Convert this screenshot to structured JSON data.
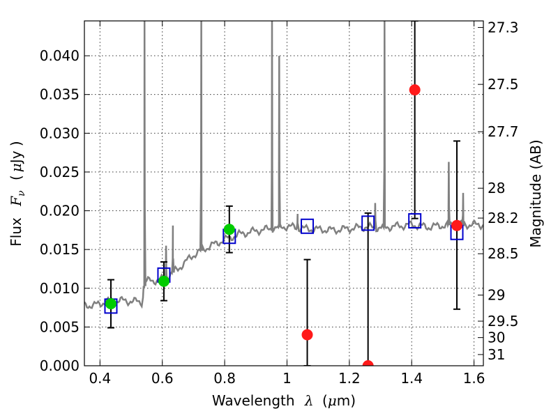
{
  "chart_data": {
    "type": "line",
    "xlabel_prefix": "Wavelength",
    "xlabel_symbol": "λ",
    "xlabel_unit_open": "(",
    "xlabel_unit_mu": "μ",
    "xlabel_unit_rest": "m)",
    "ylabel_prefix": "Flux",
    "ylabel_symbol": "F",
    "ylabel_symbol_sub": "ν",
    "ylabel_unit_open": "(",
    "ylabel_unit_mu": "μ",
    "ylabel_unit_rest": "Jy )",
    "ylabel_right": "Magnitude (AB)",
    "xlim": [
      0.35,
      1.63
    ],
    "ylim": [
      0.0,
      0.0445
    ],
    "x_ticks": [
      0.4,
      0.6,
      0.8,
      1.0,
      1.2,
      1.4,
      1.6
    ],
    "x_tick_labels": [
      "0.4",
      "0.6",
      "0.8",
      "1",
      "1.2",
      "1.4",
      "1.6"
    ],
    "y_ticks": [
      0.0,
      0.005,
      0.01,
      0.015,
      0.02,
      0.025,
      0.03,
      0.035,
      0.04
    ],
    "y_tick_labels": [
      "0.000",
      "0.005",
      "0.010",
      "0.015",
      "0.020",
      "0.025",
      "0.030",
      "0.035",
      "0.040"
    ],
    "right_ticks": [
      27.3,
      27.5,
      27.7,
      28,
      28.2,
      28.5,
      29,
      29.5,
      30,
      31
    ],
    "right_tick_labels": [
      "27.3",
      "27.5",
      "27.7",
      "28",
      "28.2",
      "28.5",
      "29",
      "29.5",
      "30",
      "31"
    ],
    "grid": true,
    "colors": {
      "spectrum": "#808080",
      "model_box": "#0000cc",
      "green_point": "#00cc00",
      "red_point": "#ff1a1a",
      "errorbar": "#000000"
    },
    "spectrum_continuum": [
      [
        0.35,
        0.0078
      ],
      [
        0.38,
        0.0078
      ],
      [
        0.4,
        0.008
      ],
      [
        0.42,
        0.0083
      ],
      [
        0.45,
        0.0084
      ],
      [
        0.48,
        0.0084
      ],
      [
        0.5,
        0.0083
      ],
      [
        0.52,
        0.0083
      ],
      [
        0.535,
        0.0082
      ],
      [
        0.545,
        0.0108
      ],
      [
        0.56,
        0.011
      ],
      [
        0.58,
        0.011
      ],
      [
        0.6,
        0.0112
      ],
      [
        0.62,
        0.0116
      ],
      [
        0.65,
        0.0125
      ],
      [
        0.68,
        0.0136
      ],
      [
        0.7,
        0.0143
      ],
      [
        0.74,
        0.0152
      ],
      [
        0.78,
        0.0159
      ],
      [
        0.8,
        0.0163
      ],
      [
        0.85,
        0.017
      ],
      [
        0.9,
        0.0174
      ],
      [
        0.95,
        0.0177
      ],
      [
        1.0,
        0.018
      ],
      [
        1.05,
        0.0177
      ],
      [
        1.1,
        0.0176
      ],
      [
        1.15,
        0.0175
      ],
      [
        1.2,
        0.0177
      ],
      [
        1.25,
        0.0179
      ],
      [
        1.3,
        0.0178
      ],
      [
        1.35,
        0.018
      ],
      [
        1.4,
        0.0182
      ],
      [
        1.45,
        0.0179
      ],
      [
        1.5,
        0.0181
      ],
      [
        1.55,
        0.0182
      ],
      [
        1.6,
        0.0182
      ],
      [
        1.63,
        0.0182
      ]
    ],
    "emission_lines": [
      {
        "x": 0.543,
        "peak": 0.0445
      },
      {
        "x": 0.612,
        "peak": 0.0155
      },
      {
        "x": 0.634,
        "peak": 0.0181
      },
      {
        "x": 0.725,
        "peak": 0.0445
      },
      {
        "x": 0.952,
        "peak": 0.0445
      },
      {
        "x": 0.975,
        "peak": 0.04
      },
      {
        "x": 1.034,
        "peak": 0.0196
      },
      {
        "x": 1.283,
        "peak": 0.021
      },
      {
        "x": 1.313,
        "peak": 0.0445
      },
      {
        "x": 1.519,
        "peak": 0.0263
      },
      {
        "x": 1.565,
        "peak": 0.0223
      }
    ],
    "model_boxes": [
      {
        "x": 0.435,
        "y": 0.0077
      },
      {
        "x": 0.605,
        "y": 0.0117
      },
      {
        "x": 0.815,
        "y": 0.0167
      },
      {
        "x": 1.065,
        "y": 0.018
      },
      {
        "x": 1.26,
        "y": 0.0184
      },
      {
        "x": 1.41,
        "y": 0.0187
      },
      {
        "x": 1.545,
        "y": 0.0172
      }
    ],
    "green_points": [
      {
        "x": 0.435,
        "y": 0.008,
        "yerr_low": 0.0049,
        "yerr_high": 0.0111
      },
      {
        "x": 0.605,
        "y": 0.0109,
        "yerr_low": 0.0084,
        "yerr_high": 0.0134
      },
      {
        "x": 0.815,
        "y": 0.0176,
        "yerr_low": 0.0146,
        "yerr_high": 0.0206
      }
    ],
    "red_points": [
      {
        "x": 1.065,
        "y": 0.004,
        "yerr_low": 0.0,
        "yerr_high": 0.0137
      },
      {
        "x": 1.26,
        "y": 0.0,
        "yerr_low": 0.0,
        "yerr_high": 0.0197
      },
      {
        "x": 1.41,
        "y": 0.0356,
        "yerr_low": 0.019,
        "yerr_high": 0.0445
      },
      {
        "x": 1.545,
        "y": 0.0181,
        "yerr_low": 0.0073,
        "yerr_high": 0.029
      }
    ]
  }
}
